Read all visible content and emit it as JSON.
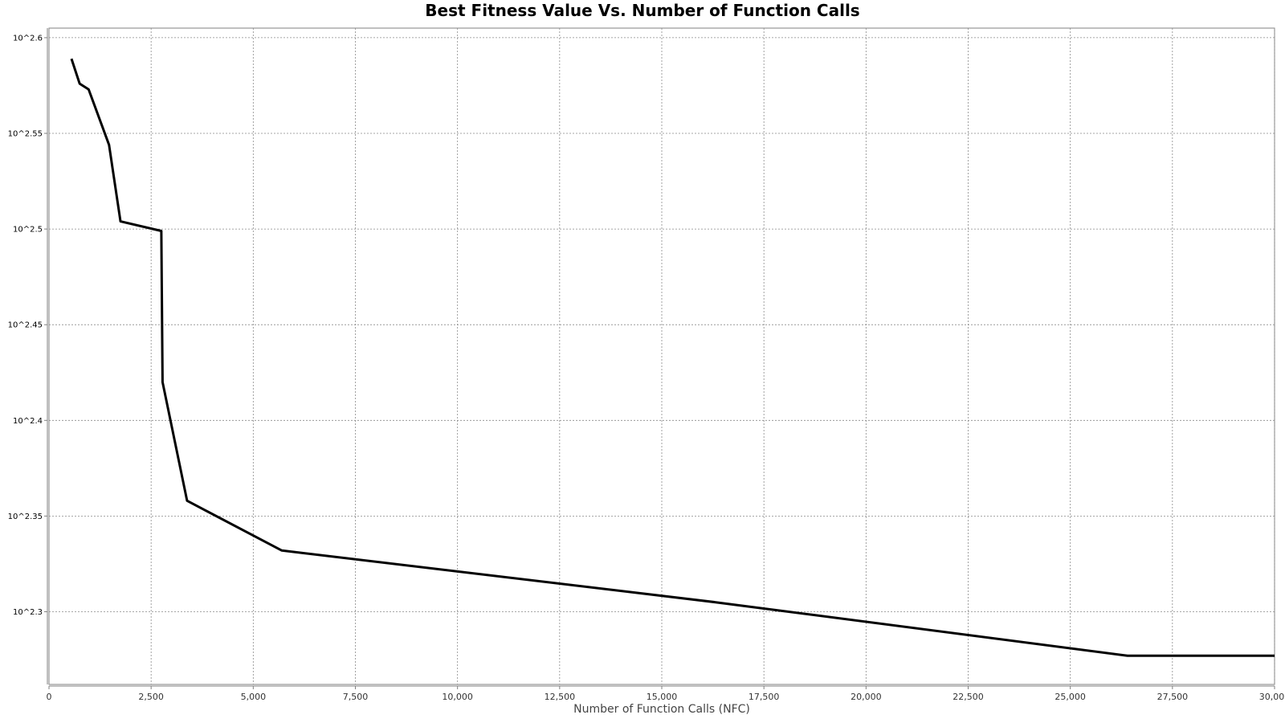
{
  "chart_data": {
    "type": "line",
    "title": "Best Fitness Value Vs. Number of Function Calls",
    "xlabel": "Number of Function Calls (NFC)",
    "ylabel": "",
    "xlim": [
      0,
      30000
    ],
    "ylim_exponent": [
      2.262,
      2.605
    ],
    "y_scale": "log10",
    "grid": true,
    "x_ticks": [
      {
        "value": 0,
        "label": "0"
      },
      {
        "value": 2500,
        "label": "2,500"
      },
      {
        "value": 5000,
        "label": "5,000"
      },
      {
        "value": 7500,
        "label": "7,500"
      },
      {
        "value": 10000,
        "label": "10,000"
      },
      {
        "value": 12500,
        "label": "12,500"
      },
      {
        "value": 15000,
        "label": "15,000"
      },
      {
        "value": 17500,
        "label": "17,500"
      },
      {
        "value": 20000,
        "label": "20,000"
      },
      {
        "value": 22500,
        "label": "22,500"
      },
      {
        "value": 25000,
        "label": "25,000"
      },
      {
        "value": 27500,
        "label": "27,500"
      },
      {
        "value": 30000,
        "label": "30,000"
      }
    ],
    "y_ticks": [
      {
        "exponent": 2.6,
        "label": "10^2.6"
      },
      {
        "exponent": 2.55,
        "label": "10^2.55"
      },
      {
        "exponent": 2.5,
        "label": "10^2.5"
      },
      {
        "exponent": 2.45,
        "label": "10^2.45"
      },
      {
        "exponent": 2.4,
        "label": "10^2.4"
      },
      {
        "exponent": 2.35,
        "label": "10^2.35"
      },
      {
        "exponent": 2.3,
        "label": "10^2.3"
      }
    ],
    "series": [
      {
        "color": "#000000",
        "x": [
          550,
          750,
          970,
          1470,
          1750,
          2750,
          2780,
          3380,
          5700,
          16300,
          26400,
          30000
        ],
        "y_exponent": [
          2.589,
          2.576,
          2.573,
          2.544,
          2.504,
          2.499,
          2.42,
          2.358,
          2.332,
          2.305,
          2.277,
          2.277
        ]
      }
    ]
  }
}
